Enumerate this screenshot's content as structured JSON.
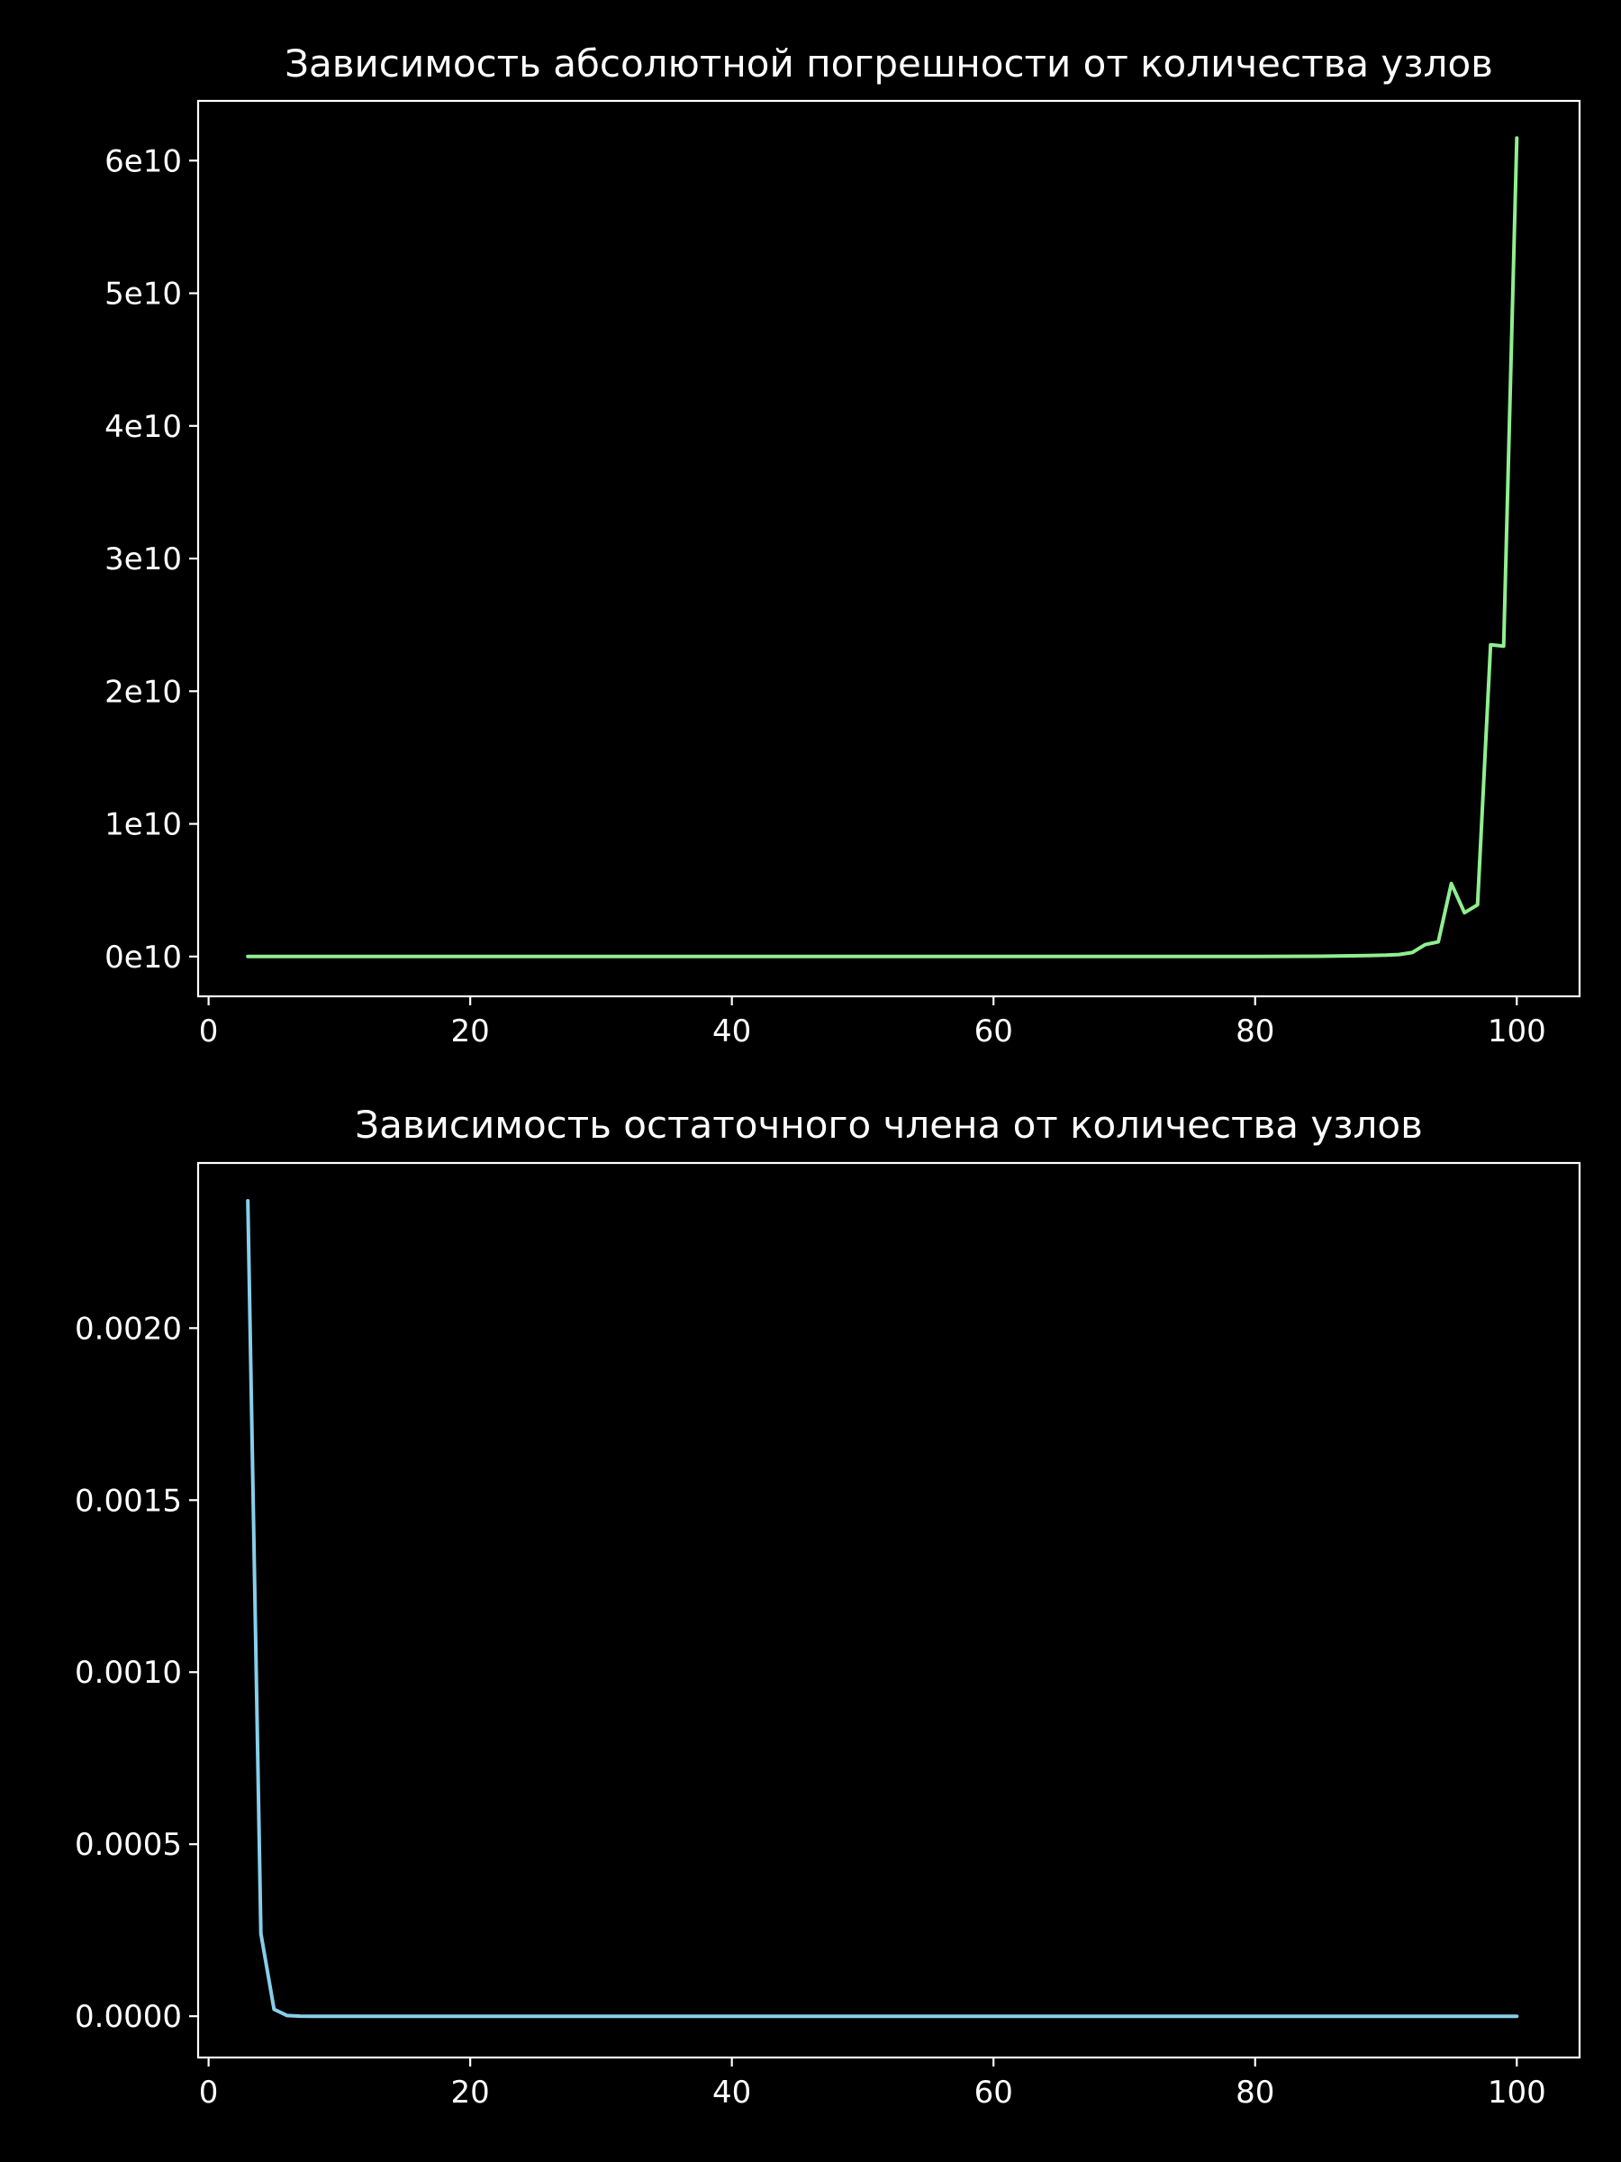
{
  "chart_data": [
    {
      "type": "line",
      "title": "Зависимость абсолютной погрешности от количества узлов",
      "xlabel": "",
      "ylabel": "",
      "xlim": [
        -0.8,
        104.8
      ],
      "ylim": [
        -3000000000.0,
        64500000000.0
      ],
      "grid": false,
      "x_ticks": [
        0,
        20,
        40,
        60,
        80,
        100
      ],
      "x_tick_labels": [
        "0",
        "20",
        "40",
        "60",
        "80",
        "100"
      ],
      "y_ticks": [
        0,
        10000000000,
        20000000000,
        30000000000,
        40000000000,
        50000000000,
        60000000000
      ],
      "y_tick_labels": [
        "0e10",
        "1e10",
        "2e10",
        "3e10",
        "4e10",
        "5e10",
        "6e10"
      ],
      "color": "#90ee90",
      "series": [
        {
          "x": [
            3,
            10,
            20,
            30,
            40,
            50,
            60,
            70,
            80,
            85,
            88,
            90,
            91,
            92,
            93,
            94,
            95,
            96,
            97,
            98,
            99,
            100
          ],
          "values": [
            0,
            0,
            0,
            0,
            0,
            0,
            0,
            0,
            1000000,
            20000000,
            60000000,
            100000000,
            150000000,
            300000000,
            900000000,
            1100000000,
            5500000000,
            3300000000,
            3900000000,
            23500000000,
            23400000000,
            61700000000
          ]
        }
      ]
    },
    {
      "type": "line",
      "title": "Зависимость остаточного члена от количества узлов",
      "xlabel": "",
      "ylabel": "",
      "xlim": [
        -0.8,
        104.8
      ],
      "ylim": [
        -0.00012,
        0.00248
      ],
      "grid": false,
      "x_ticks": [
        0,
        20,
        40,
        60,
        80,
        100
      ],
      "x_tick_labels": [
        "0",
        "20",
        "40",
        "60",
        "80",
        "100"
      ],
      "y_ticks": [
        0,
        0.0005,
        0.001,
        0.0015,
        0.002
      ],
      "y_tick_labels": [
        "0.0000",
        "0.0005",
        "0.0010",
        "0.0015",
        "0.0020"
      ],
      "color": "#87ceeb",
      "series": [
        {
          "x": [
            3,
            4,
            5,
            6,
            7,
            8,
            10,
            20,
            40,
            60,
            80,
            100
          ],
          "values": [
            0.00237,
            0.00024,
            2e-05,
            2e-06,
            2e-07,
            2e-08,
            0,
            0,
            0,
            0,
            0,
            0
          ]
        }
      ]
    }
  ]
}
